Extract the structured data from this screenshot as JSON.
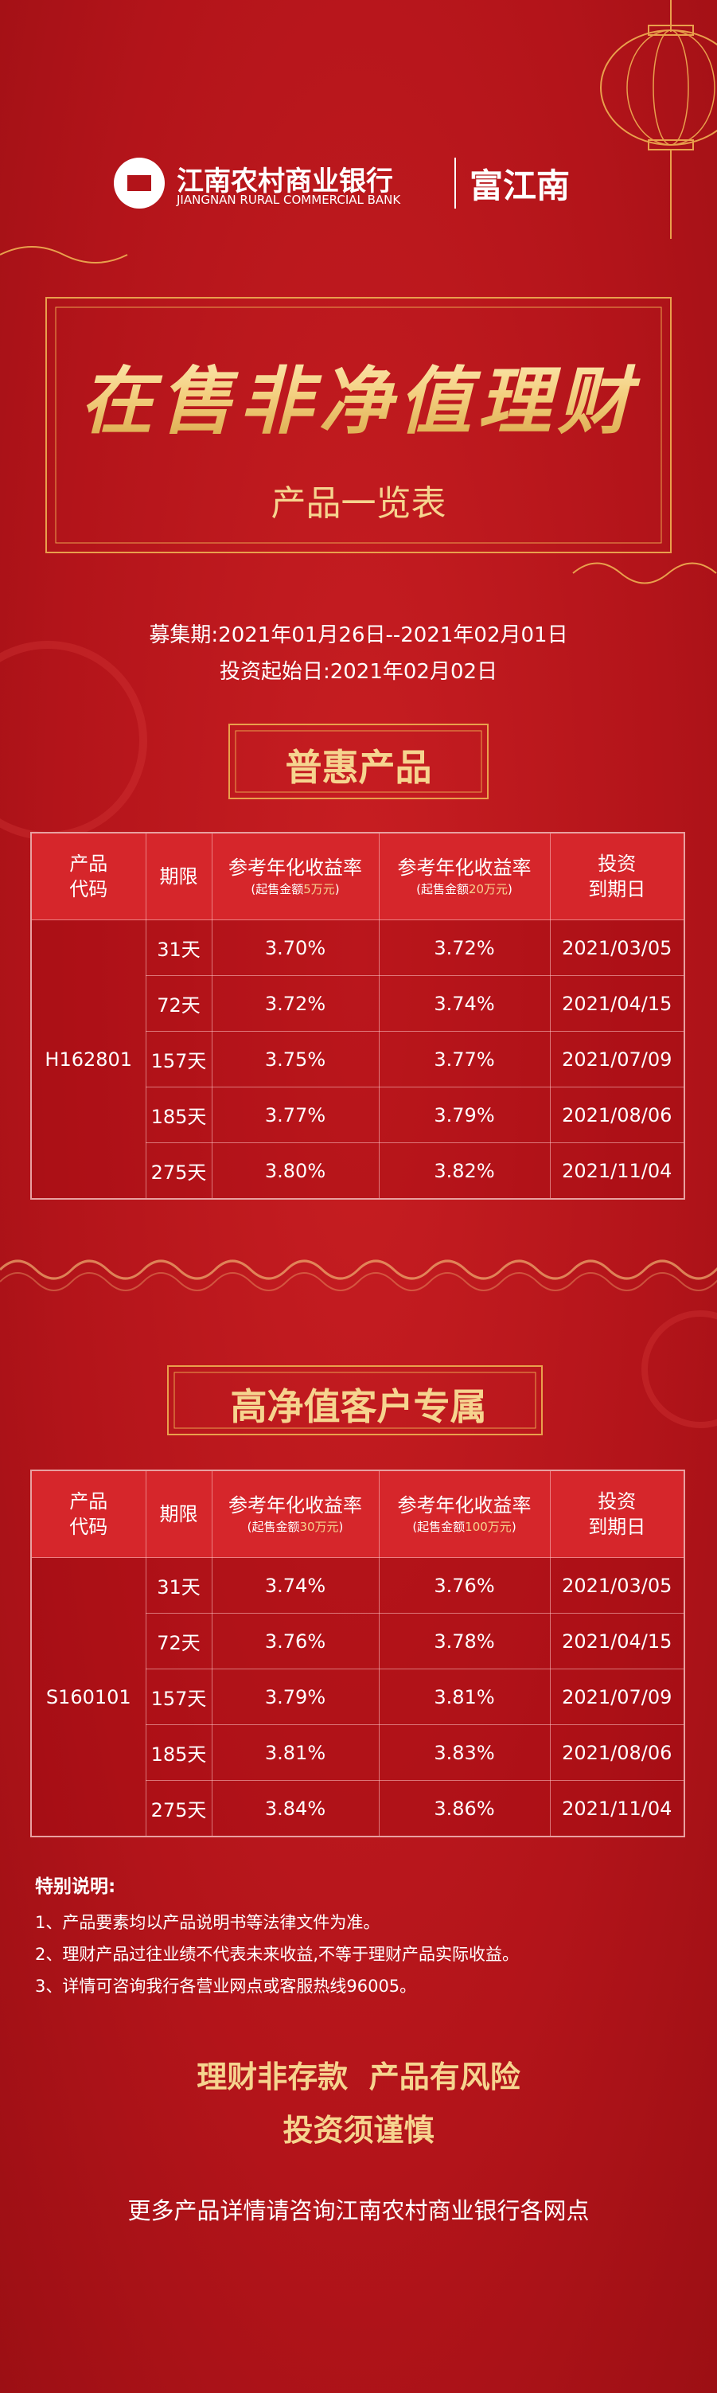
{
  "header": {
    "bank_name": "江南农村商业银行",
    "bank_name_en": "JIANGNAN RURAL COMMERCIAL BANK",
    "brand": "富江南"
  },
  "title": "在售非净值理财",
  "subtitle": "产品一览表",
  "period": "募集期:2021年01月26日--2021年02月01日",
  "start_date": "投资起始日:2021年02月02日",
  "sections": [
    {
      "heading": "普惠产品",
      "table": {
        "columns": [
          {
            "lines": [
              "产品",
              "代码"
            ]
          },
          {
            "lines": [
              "期限"
            ]
          },
          {
            "lines": [
              "参考年化收益率"
            ],
            "note": [
              "(起售金额",
              "5万元",
              ")"
            ]
          },
          {
            "lines": [
              "参考年化收益率"
            ],
            "note": [
              "(起售金额",
              "20万元",
              ")"
            ]
          },
          {
            "lines": [
              "投资",
              "到期日"
            ]
          }
        ],
        "code": "H162801",
        "rows": [
          [
            "31天",
            "3.70%",
            "3.72%",
            "2021/03/05"
          ],
          [
            "72天",
            "3.72%",
            "3.74%",
            "2021/04/15"
          ],
          [
            "157天",
            "3.75%",
            "3.77%",
            "2021/07/09"
          ],
          [
            "185天",
            "3.77%",
            "3.79%",
            "2021/08/06"
          ],
          [
            "275天",
            "3.80%",
            "3.82%",
            "2021/11/04"
          ]
        ]
      }
    },
    {
      "heading": "高净值客户专属",
      "table": {
        "columns": [
          {
            "lines": [
              "产品",
              "代码"
            ]
          },
          {
            "lines": [
              "期限"
            ]
          },
          {
            "lines": [
              "参考年化收益率"
            ],
            "note": [
              "(起售金额",
              "30万元",
              ")"
            ]
          },
          {
            "lines": [
              "参考年化收益率"
            ],
            "note": [
              "(起售金额",
              "100万元",
              ")"
            ]
          },
          {
            "lines": [
              "投资",
              "到期日"
            ]
          }
        ],
        "code": "S160101",
        "rows": [
          [
            "31天",
            "3.74%",
            "3.76%",
            "2021/03/05"
          ],
          [
            "72天",
            "3.76%",
            "3.78%",
            "2021/04/15"
          ],
          [
            "157天",
            "3.79%",
            "3.81%",
            "2021/07/09"
          ],
          [
            "185天",
            "3.81%",
            "3.83%",
            "2021/08/06"
          ],
          [
            "275天",
            "3.84%",
            "3.86%",
            "2021/11/04"
          ]
        ]
      }
    }
  ],
  "notes": {
    "title": "特别说明:",
    "items": [
      "1、产品要素均以产品说明书等法律文件为准。",
      "2、理财产品过往业绩不代表未来收益,不等于理财产品实际收益。",
      "3、详情可咨询我行各营业网点或客服热线96005。"
    ]
  },
  "slogans": [
    "理财非存款  产品有风险",
    "投资须谨慎"
  ],
  "footer": "更多产品详情请咨询江南农村商业银行各网点"
}
